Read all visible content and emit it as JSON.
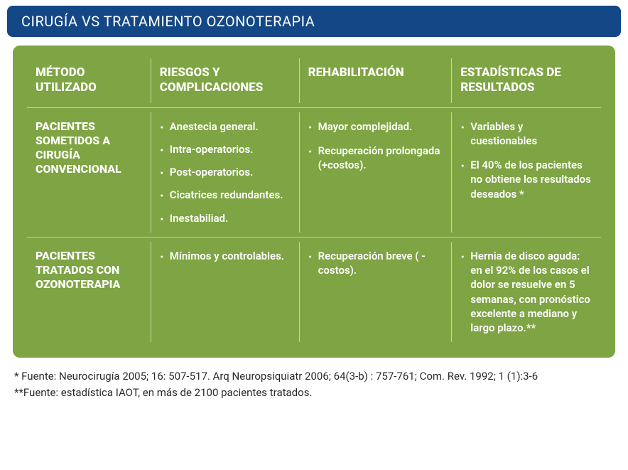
{
  "colors": {
    "header_bg": "#144785",
    "table_bg": "#7ea443",
    "text_light": "#ffffff",
    "text_dark": "#2a2a2a",
    "divider": "rgba(255,255,255,0.55)"
  },
  "header": {
    "title": "CIRUGÍA VS TRATAMIENTO OZONOTERAPIA"
  },
  "table": {
    "columns": {
      "c1": "MÉTODO UTILIZADO",
      "c2": "RIESGOS Y COMPLICACIONES",
      "c3": "REHABILITACIÓN",
      "c4": "ESTADÍSTICAS DE RESULTADOS"
    },
    "row1": {
      "label": "PACIENTES SOMETIDOS A CIRUGÍA CONVENCIONAL",
      "risks": {
        "b1": "Anestecia general.",
        "b2": "Intra-operatorios.",
        "b3": "Post-operatorios.",
        "b4": "Cicatrices redundantes.",
        "b5": "Inestabiliad."
      },
      "rehab": {
        "b1": "Mayor complejidad.",
        "b2": "Recuperación prolongada (+costos)."
      },
      "stats": {
        "b1": "Variables y cuestionables",
        "b2": "El 40% de los pacientes no obtiene los resultados deseados *"
      }
    },
    "row2": {
      "label": "PACIENTES TRATADOS CON OZONOTERAPIA",
      "risks": {
        "b1": "Mínimos y controlables."
      },
      "rehab": {
        "b1": "Recuperación breve ( -costos)."
      },
      "stats": {
        "b1": "Hernia de disco aguda: en el  92% de los  casos el dolor se resuelve en 5 semanas, con pronóstico excelente a mediano y largo plazo.**"
      }
    }
  },
  "footnotes": {
    "f1": "* Fuente: Neurocirugía 2005; 16: 507-517. Arq Neuropsiquiatr 2006; 64(3-b) : 757-761; Com. Rev. 1992; 1 (1):3-6",
    "f2": "**Fuente: estadística IAOT, en más de  2100  pacientes tratados."
  },
  "typography": {
    "header_fontsize": 20,
    "th_fontsize": 17,
    "rowlabel_fontsize": 16,
    "cell_fontsize": 15,
    "footnote_fontsize": 15
  }
}
